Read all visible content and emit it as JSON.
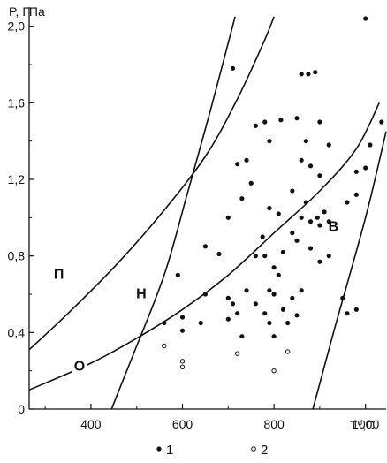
{
  "chart_data": {
    "type": "scatter",
    "title": "",
    "xlabel": "T⁰,C",
    "ylabel": "P, ГПа",
    "xlim": [
      265,
      1045
    ],
    "ylim": [
      0,
      2.1
    ],
    "x_ticks": [
      "400",
      "600",
      "800",
      "1000"
    ],
    "x_tick_values": [
      400,
      600,
      800,
      1000
    ],
    "y_ticks": [
      "0",
      "0,4",
      "0,8",
      "1,2",
      "1,6",
      "2,0"
    ],
    "y_tick_values": [
      0,
      0.4,
      0.8,
      1.2,
      1.6,
      2.0
    ],
    "grid": false,
    "legend_position": "bottom",
    "legend": [
      {
        "label": "1",
        "marker": "filled-dot"
      },
      {
        "label": "2",
        "marker": "open-circle"
      }
    ],
    "curves": [
      {
        "label": "П",
        "label_at": [
          330,
          0.68
        ],
        "points": [
          [
            265,
            0.31
          ],
          [
            350,
            0.5
          ],
          [
            450,
            0.74
          ],
          [
            550,
            1.01
          ],
          [
            650,
            1.32
          ],
          [
            720,
            1.62
          ],
          [
            780,
            1.93
          ],
          [
            800,
            2.05
          ]
        ]
      },
      {
        "label": "Н",
        "label_at": [
          510,
          0.58
        ],
        "points": [
          [
            445,
            0
          ],
          [
            490,
            0.27
          ],
          [
            560,
            0.7
          ],
          [
            610,
            1.12
          ],
          [
            660,
            1.55
          ],
          [
            715,
            2.05
          ]
        ]
      },
      {
        "label": "О",
        "label_at": [
          375,
          0.2
        ],
        "points": [
          [
            265,
            0.1
          ],
          [
            400,
            0.24
          ],
          [
            500,
            0.37
          ],
          [
            600,
            0.52
          ],
          [
            700,
            0.7
          ],
          [
            800,
            0.92
          ],
          [
            900,
            1.14
          ],
          [
            980,
            1.36
          ],
          [
            1030,
            1.6
          ]
        ]
      },
      {
        "label": "В",
        "label_at": [
          930,
          0.93
        ],
        "points": [
          [
            885,
            0
          ],
          [
            930,
            0.4
          ],
          [
            1000,
            1.0
          ],
          [
            1045,
            1.45
          ]
        ]
      }
    ],
    "series": [
      {
        "name": "1",
        "marker": "filled-dot",
        "points": [
          [
            1000,
            2.04
          ],
          [
            710,
            1.78
          ],
          [
            860,
            1.75
          ],
          [
            875,
            1.75
          ],
          [
            890,
            1.76
          ],
          [
            760,
            1.48
          ],
          [
            815,
            1.51
          ],
          [
            850,
            1.52
          ],
          [
            780,
            1.5
          ],
          [
            900,
            1.5
          ],
          [
            920,
            1.38
          ],
          [
            870,
            1.4
          ],
          [
            790,
            1.4
          ],
          [
            740,
            1.3
          ],
          [
            720,
            1.28
          ],
          [
            860,
            1.3
          ],
          [
            880,
            1.27
          ],
          [
            750,
            1.18
          ],
          [
            840,
            1.14
          ],
          [
            900,
            1.22
          ],
          [
            980,
            1.24
          ],
          [
            1000,
            1.26
          ],
          [
            1010,
            1.38
          ],
          [
            700,
            1.0
          ],
          [
            790,
            1.05
          ],
          [
            810,
            1.02
          ],
          [
            860,
            1.0
          ],
          [
            880,
            0.98
          ],
          [
            895,
            1.0
          ],
          [
            910,
            1.03
          ],
          [
            900,
            0.96
          ],
          [
            920,
            0.98
          ],
          [
            960,
            1.08
          ],
          [
            980,
            1.12
          ],
          [
            870,
            1.08
          ],
          [
            730,
            1.1
          ],
          [
            650,
            0.85
          ],
          [
            680,
            0.81
          ],
          [
            760,
            0.8
          ],
          [
            780,
            0.8
          ],
          [
            800,
            0.74
          ],
          [
            820,
            0.82
          ],
          [
            840,
            0.92
          ],
          [
            850,
            0.88
          ],
          [
            880,
            0.84
          ],
          [
            900,
            0.77
          ],
          [
            920,
            0.8
          ],
          [
            775,
            0.9
          ],
          [
            590,
            0.7
          ],
          [
            650,
            0.6
          ],
          [
            700,
            0.58
          ],
          [
            710,
            0.55
          ],
          [
            720,
            0.5
          ],
          [
            740,
            0.62
          ],
          [
            760,
            0.55
          ],
          [
            780,
            0.5
          ],
          [
            800,
            0.6
          ],
          [
            820,
            0.52
          ],
          [
            840,
            0.58
          ],
          [
            860,
            0.62
          ],
          [
            950,
            0.58
          ],
          [
            960,
            0.5
          ],
          [
            980,
            0.52
          ],
          [
            790,
            0.62
          ],
          [
            810,
            0.7
          ],
          [
            560,
            0.45
          ],
          [
            600,
            0.48
          ],
          [
            640,
            0.45
          ],
          [
            700,
            0.47
          ],
          [
            730,
            0.38
          ],
          [
            790,
            0.45
          ],
          [
            800,
            0.38
          ],
          [
            830,
            0.45
          ],
          [
            850,
            0.49
          ],
          [
            1035,
            1.5
          ],
          [
            600,
            0.41
          ]
        ]
      },
      {
        "name": "2",
        "marker": "open-circle",
        "points": [
          [
            560,
            0.33
          ],
          [
            600,
            0.25
          ],
          [
            600,
            0.22
          ],
          [
            720,
            0.29
          ],
          [
            800,
            0.2
          ],
          [
            830,
            0.3
          ]
        ]
      }
    ]
  }
}
